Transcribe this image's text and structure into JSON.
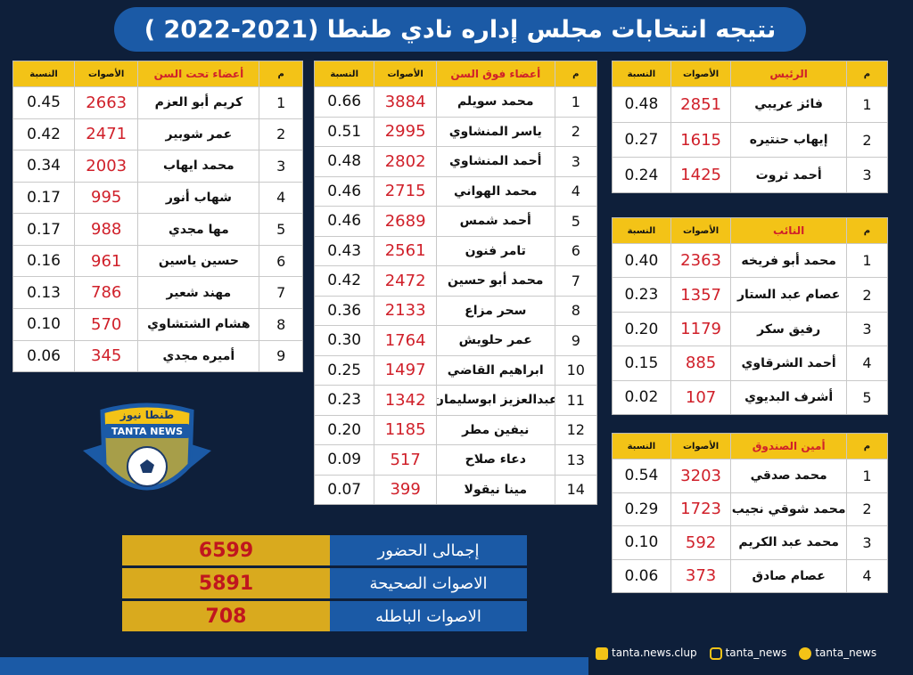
{
  "header": {
    "title": "نتيجه انتخابات مجلس إداره نادي طنطا (2021-2022 )"
  },
  "tables": [
    {
      "headers": [
        "م",
        "الرئيس",
        "الأصوات",
        "النسبة"
      ],
      "rows": [
        [
          "1",
          "فائز عريبي",
          "2851",
          "0.48"
        ],
        [
          "2",
          "إيهاب حنتيره",
          "1615",
          "0.27"
        ],
        [
          "3",
          "أحمد ثروت",
          "1425",
          "0.24"
        ]
      ]
    },
    {
      "headers": [
        "م",
        "النائب",
        "الأصوات",
        "النسبة"
      ],
      "rows": [
        [
          "1",
          "محمد أبو فريخه",
          "2363",
          "0.40"
        ],
        [
          "2",
          "عصام عبد الستار",
          "1357",
          "0.23"
        ],
        [
          "3",
          "رفيق سكر",
          "1179",
          "0.20"
        ],
        [
          "4",
          "أحمد الشرقاوي",
          "885",
          "0.15"
        ],
        [
          "5",
          "أشرف البديوي",
          "107",
          "0.02"
        ]
      ]
    },
    {
      "headers": [
        "م",
        "أمين الصندوق",
        "الأصوات",
        "النسبة"
      ],
      "rows": [
        [
          "1",
          "محمد صدقي",
          "3203",
          "0.54"
        ],
        [
          "2",
          "محمد شوقي نجيب",
          "1723",
          "0.29"
        ],
        [
          "3",
          "محمد عبد الكريم",
          "592",
          "0.10"
        ],
        [
          "4",
          "عصام صادق",
          "373",
          "0.06"
        ]
      ]
    },
    {
      "headers": [
        "م",
        "أعضاء فوق السن",
        "الأصوات",
        "النسبة"
      ],
      "rows": [
        [
          "1",
          "محمد سويلم",
          "3884",
          "0.66"
        ],
        [
          "2",
          "ياسر المنشاوي",
          "2995",
          "0.51"
        ],
        [
          "3",
          "أحمد المنشاوي",
          "2802",
          "0.48"
        ],
        [
          "4",
          "محمد الهواني",
          "2715",
          "0.46"
        ],
        [
          "5",
          "أحمد شمس",
          "2689",
          "0.46"
        ],
        [
          "6",
          "تامر فنون",
          "2561",
          "0.43"
        ],
        [
          "7",
          "محمد أبو حسين",
          "2472",
          "0.42"
        ],
        [
          "8",
          "سحر مزاع",
          "2133",
          "0.36"
        ],
        [
          "9",
          "عمر حلويش",
          "1764",
          "0.30"
        ],
        [
          "10",
          "ابراهيم القاضي",
          "1497",
          "0.25"
        ],
        [
          "11",
          "عبدالعزيز ابوسليمان",
          "1342",
          "0.23"
        ],
        [
          "12",
          "نيفين مطر",
          "1185",
          "0.20"
        ],
        [
          "13",
          "دعاء صلاح",
          "517",
          "0.09"
        ],
        [
          "14",
          "مينا نيقولا",
          "399",
          "0.07"
        ]
      ]
    },
    {
      "headers": [
        "م",
        "أعضاء تحت السن",
        "الأصوات",
        "النسبة"
      ],
      "rows": [
        [
          "1",
          "كريم أبو العزم",
          "2663",
          "0.45"
        ],
        [
          "2",
          "عمر شوبير",
          "2471",
          "0.42"
        ],
        [
          "3",
          "محمد ايهاب",
          "2003",
          "0.34"
        ],
        [
          "4",
          "شهاب أنور",
          "995",
          "0.17"
        ],
        [
          "5",
          "مها مجدي",
          "988",
          "0.17"
        ],
        [
          "6",
          "حسين ياسين",
          "961",
          "0.16"
        ],
        [
          "7",
          "مهند شعير",
          "786",
          "0.13"
        ],
        [
          "8",
          "هشام الشتشاوي",
          "570",
          "0.10"
        ],
        [
          "9",
          "أميره مجدي",
          "345",
          "0.06"
        ]
      ]
    }
  ],
  "totals": [
    [
      "إجمالى الحضور",
      "6599"
    ],
    [
      "الاصوات الصحيحة",
      "5891"
    ],
    [
      "الاصوات الباطله",
      "708"
    ]
  ],
  "logo": {
    "arabic": "طنطا نيوز",
    "english": "TANTA NEWS"
  },
  "footer": {
    "facebook": "tanta.news.clup",
    "instagram": "tanta_news",
    "twitter": "tanta_news"
  }
}
